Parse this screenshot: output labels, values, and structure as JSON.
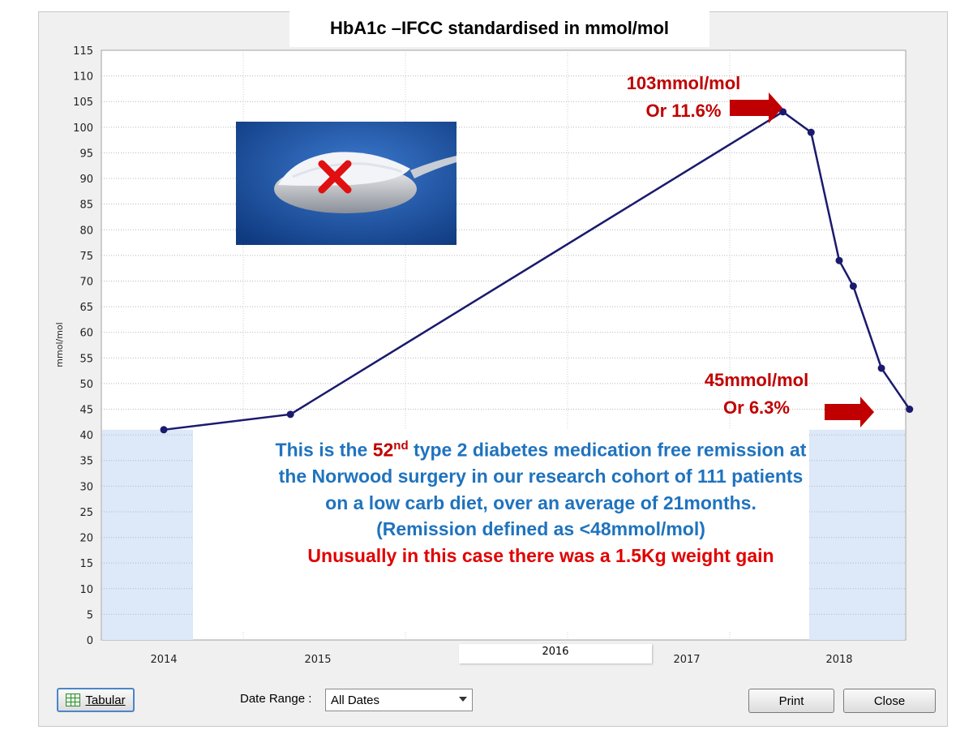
{
  "window": {
    "title": "HbA1c –IFCC standardised in mmol/mol"
  },
  "chart_data": {
    "type": "line",
    "title": "HbA1c –IFCC standardised in mmol/mol",
    "xlabel": "",
    "ylabel": "mmol/mol",
    "ylim": [
      0,
      115
    ],
    "ytick_step": 5,
    "x_tick_labels": [
      "2014",
      "2015",
      "2016",
      "2017",
      "2018"
    ],
    "grid": true,
    "series": [
      {
        "color": "#1a1a6e",
        "points": [
          {
            "x": "2014-01",
            "y": 41
          },
          {
            "x": "2014-10",
            "y": 44
          },
          {
            "x": "2017-09",
            "y": 103
          },
          {
            "x": "2017-11",
            "y": 99
          },
          {
            "x": "2018-01",
            "y": 74
          },
          {
            "x": "2018-02",
            "y": 69
          },
          {
            "x": "2018-04",
            "y": 53
          },
          {
            "x": "2018-06",
            "y": 45
          }
        ]
      }
    ],
    "annotations": {
      "peak_line1": "103mmol/mol",
      "peak_line2": "Or 11.6%",
      "end_line1": "45mmol/mol",
      "end_line2": "Or 6.3%"
    }
  },
  "info": {
    "line1_pre": "This is the ",
    "line1_num": "52",
    "line1_sup": "nd",
    "line1_post": " type 2 diabetes medication free remission at",
    "line2": "the Norwood surgery in our research cohort of 111 patients",
    "line3": "on a low carb diet, over an average of 21months.",
    "line4": "(Remission defined as <48mmol/mol)",
    "line5": "Unusually in this case there was a 1.5Kg weight gain"
  },
  "photo": {
    "icon": "sugar-spoon-crossed-icon",
    "cross_color": "#e01010"
  },
  "controls": {
    "tabular_label": "Tabular",
    "date_range_label": "Date Range :",
    "date_range_value": "All Dates",
    "print_label": "Print",
    "close_label": "Close"
  },
  "colors": {
    "line": "#1a1a6e",
    "annotation_red": "#c00000",
    "info_blue": "#1f73be",
    "info_red": "#e00000",
    "band_fill": "#dde8f8"
  }
}
